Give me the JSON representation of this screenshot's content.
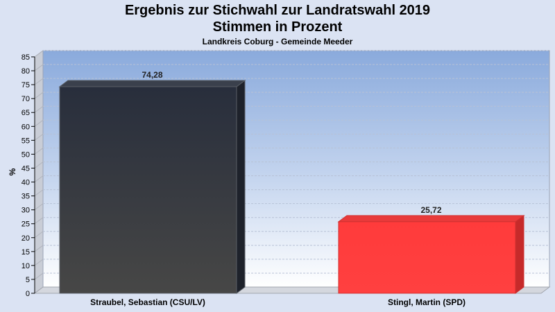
{
  "chart_data": {
    "type": "bar",
    "title_line1": "Ergebnis zur Stichwahl zur Landratswahl 2019",
    "title_line2": "Stimmen in Prozent",
    "subtitle": "Landkreis Coburg - Gemeinde Meeder",
    "ylabel": "%",
    "xlabel": "",
    "ylim": [
      0,
      85
    ],
    "ytick_step": 5,
    "yticks": [
      "0",
      "5",
      "10",
      "15",
      "20",
      "25",
      "30",
      "35",
      "40",
      "45",
      "50",
      "55",
      "60",
      "65",
      "70",
      "75",
      "80",
      "85"
    ],
    "grid": true,
    "categories": [
      "Straubel, Sebastian (CSU/LV)",
      "Stingl, Martin (SPD)"
    ],
    "values": [
      74.28,
      25.72
    ],
    "value_labels": [
      "74,28",
      "25,72"
    ],
    "colors": [
      "#2b2f3a",
      "#ff3b3b"
    ]
  }
}
